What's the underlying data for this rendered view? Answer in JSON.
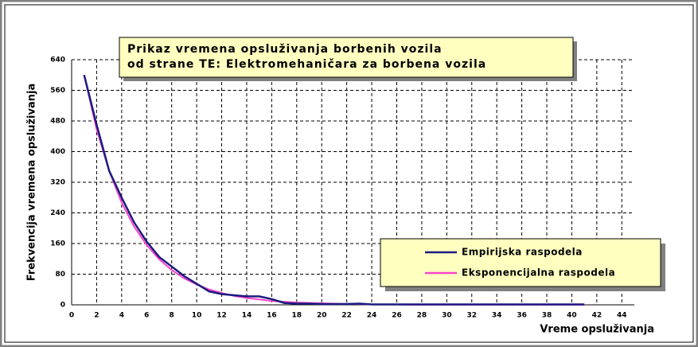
{
  "chart_data": {
    "type": "line",
    "title_lines": [
      "Prikaz vremena opsluživanja borbenih vozila",
      "od strane TE: Elektromehaničara za borbena vozila"
    ],
    "x_label": "Vreme opsluživanja",
    "y_label": "Frekvencija vremena opsluživanja",
    "x": [
      1,
      2,
      3,
      4,
      5,
      6,
      7,
      8,
      9,
      10,
      11,
      12,
      13,
      14,
      15,
      16,
      17,
      18,
      19,
      20,
      21,
      22,
      23,
      24,
      25,
      26,
      27,
      28,
      29,
      30,
      31,
      32,
      33,
      34,
      35,
      36,
      37,
      38,
      39,
      40,
      41
    ],
    "series": [
      {
        "name": "Empirijska raspodela",
        "color": "#1c1c80",
        "values": [
          600,
          470,
          350,
          280,
          215,
          165,
          125,
          100,
          75,
          55,
          35,
          28,
          25,
          22,
          22,
          15,
          5,
          3,
          3,
          2,
          2,
          2,
          3,
          1,
          1,
          1,
          1,
          1,
          1,
          1,
          1,
          1,
          1,
          1,
          1,
          1,
          1,
          1,
          1,
          1,
          1
        ]
      },
      {
        "name": "Eksponencijalna raspodela",
        "color": "#ff44cc",
        "values": [
          600,
          458,
          350,
          267,
          204,
          156,
          119,
          91,
          69,
          53,
          40,
          31,
          23,
          18,
          14,
          10,
          8,
          6,
          5,
          4,
          3,
          2,
          2,
          1,
          1,
          1,
          0,
          0,
          0,
          0,
          0,
          0,
          0,
          0,
          0,
          0,
          0,
          0,
          0,
          0,
          0
        ]
      }
    ],
    "xlim": [
      0,
      45
    ],
    "ylim": [
      0,
      640
    ],
    "xticks": [
      0,
      2,
      4,
      6,
      8,
      10,
      12,
      14,
      16,
      18,
      20,
      22,
      24,
      26,
      28,
      30,
      32,
      34,
      36,
      38,
      40,
      42,
      44
    ],
    "yticks": [
      0,
      80,
      160,
      240,
      320,
      400,
      480,
      560,
      640
    ],
    "grid": true,
    "legend": "lower right"
  }
}
